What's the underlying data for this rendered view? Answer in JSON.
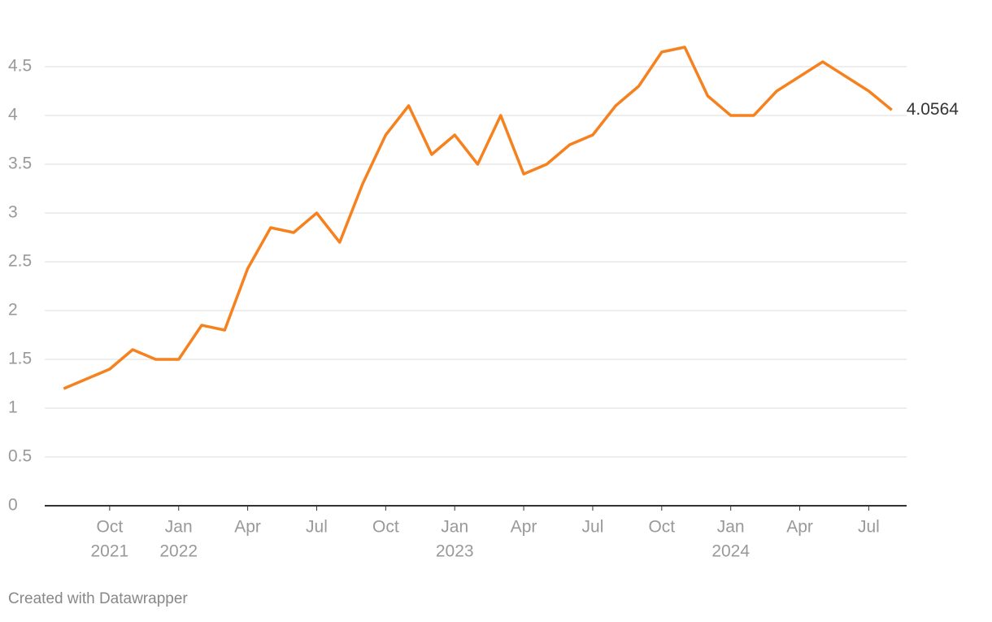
{
  "chart_data": {
    "type": "line",
    "x": [
      "2021-08",
      "2021-09",
      "2021-10",
      "2021-11",
      "2021-12",
      "2022-01",
      "2022-02",
      "2022-03",
      "2022-04",
      "2022-05",
      "2022-06",
      "2022-07",
      "2022-08",
      "2022-09",
      "2022-10",
      "2022-11",
      "2022-12",
      "2023-01",
      "2023-02",
      "2023-03",
      "2023-04",
      "2023-05",
      "2023-06",
      "2023-07",
      "2023-08",
      "2023-09",
      "2023-10",
      "2023-11",
      "2023-12",
      "2024-01",
      "2024-02",
      "2024-03",
      "2024-04",
      "2024-05",
      "2024-06",
      "2024-07",
      "2024-08"
    ],
    "series": [
      {
        "color": "#f5821f",
        "values": [
          1.2,
          1.3,
          1.4,
          1.6,
          1.5,
          1.5,
          1.85,
          1.8,
          2.43,
          2.85,
          2.8,
          3.0,
          2.7,
          3.3,
          3.8,
          4.1,
          3.6,
          3.8,
          3.5,
          4.0,
          3.4,
          3.5,
          3.7,
          3.8,
          4.1,
          4.3,
          4.65,
          4.7,
          4.2,
          4.0,
          4.0,
          4.25,
          4.4,
          4.55,
          4.4,
          4.25,
          4.0564
        ]
      }
    ],
    "xlim": [
      "2021-07",
      "2024-09"
    ],
    "xticks": [
      {
        "value": "2021-10",
        "label": "Oct",
        "year": "2021"
      },
      {
        "value": "2022-01",
        "label": "Jan",
        "year": "2022"
      },
      {
        "value": "2022-04",
        "label": "Apr"
      },
      {
        "value": "2022-07",
        "label": "Jul"
      },
      {
        "value": "2022-10",
        "label": "Oct"
      },
      {
        "value": "2023-01",
        "label": "Jan",
        "year": "2023"
      },
      {
        "value": "2023-04",
        "label": "Apr"
      },
      {
        "value": "2023-07",
        "label": "Jul"
      },
      {
        "value": "2023-10",
        "label": "Oct"
      },
      {
        "value": "2024-01",
        "label": "Jan",
        "year": "2024"
      },
      {
        "value": "2024-04",
        "label": "Apr"
      },
      {
        "value": "2024-07",
        "label": "Jul"
      }
    ],
    "ylim": [
      0,
      5
    ],
    "yticks": [
      0,
      0.5,
      1,
      1.5,
      2,
      2.5,
      3,
      3.5,
      4,
      4.5
    ],
    "grid": true,
    "footer": "Created with Datawrapper"
  }
}
